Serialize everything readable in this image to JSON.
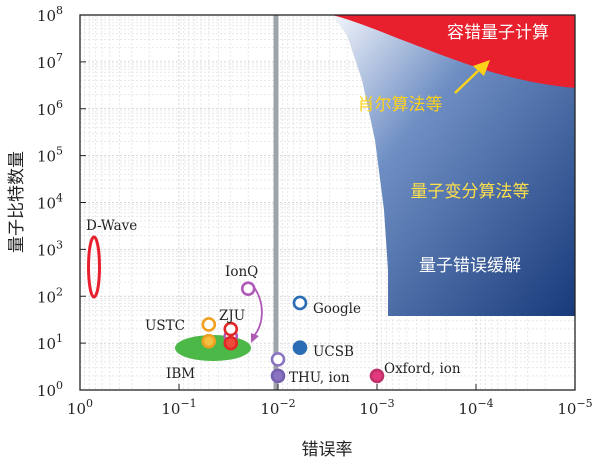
{
  "chart_data": {
    "type": "scatter",
    "title": "",
    "xlabel": "错误率",
    "ylabel": "量子比特数量",
    "xscale": "log",
    "yscale": "log",
    "x_direction": "decreasing",
    "xlim": [
      1,
      1e-05
    ],
    "ylim": [
      1,
      100000000.0
    ],
    "grid": true,
    "x_ticks": [
      {
        "value": 1,
        "base": "10",
        "exp": "0"
      },
      {
        "value": 0.1,
        "base": "10",
        "exp": "−1"
      },
      {
        "value": 0.01,
        "base": "10",
        "exp": "−2"
      },
      {
        "value": 0.001,
        "base": "10",
        "exp": "−3"
      },
      {
        "value": 0.0001,
        "base": "10",
        "exp": "−4"
      },
      {
        "value": 1e-05,
        "base": "10",
        "exp": "−5"
      }
    ],
    "y_ticks": [
      {
        "value": 1,
        "base": "10",
        "exp": "0"
      },
      {
        "value": 10,
        "base": "10",
        "exp": "1"
      },
      {
        "value": 100,
        "base": "10",
        "exp": "2"
      },
      {
        "value": 1000,
        "base": "10",
        "exp": "3"
      },
      {
        "value": 10000,
        "base": "10",
        "exp": "4"
      },
      {
        "value": 100000,
        "base": "10",
        "exp": "5"
      },
      {
        "value": 1000000,
        "base": "10",
        "exp": "6"
      },
      {
        "value": 10000000,
        "base": "10",
        "exp": "7"
      },
      {
        "value": 100000000,
        "base": "10",
        "exp": "8"
      }
    ],
    "threshold_line": {
      "x": 0.01,
      "color": "#9ea3a8"
    },
    "regions": [
      {
        "name": "容错量子计算",
        "color": "#e8202e",
        "text_color": "#ffffff"
      },
      {
        "name": "量子变分算法等",
        "color": "#2f5c9e",
        "text_color": "#ffe04a"
      },
      {
        "name": "量子错误缓解",
        "color": "#1e3f80",
        "text_color": "#ffffff"
      }
    ],
    "shor_label": {
      "text": "肖尔算法等",
      "color": "#ffd21a"
    },
    "dwave": {
      "label": "D-Wave",
      "x": 0.7,
      "y_low": 100,
      "y_high": 1000,
      "color": "#e8202e"
    },
    "ibm_cluster": {
      "label": "IBM",
      "x_range": [
        0.08,
        0.015
      ],
      "y": 9,
      "color": "#4cb848"
    },
    "points": [
      {
        "label": "Google",
        "x": 0.006,
        "y": 72,
        "color": "#2a6db5",
        "fill": "#ffffff"
      },
      {
        "label": "UCSB",
        "x": 0.006,
        "y": 8,
        "color": "#2a6db5",
        "fill": "#2a6db5"
      },
      {
        "label": "THU, ion",
        "x": 0.01,
        "y": 4.5,
        "color": "#8a74c2",
        "fill": "#ffffff"
      },
      {
        "label": "",
        "x": 0.01,
        "y": 2,
        "color": "#7560b0",
        "fill": "#8a74c2"
      },
      {
        "label": "Oxford, ion",
        "x": 0.001,
        "y": 2,
        "color": "#c0306a",
        "fill": "#e23a7c"
      },
      {
        "label": "IonQ",
        "x": 0.03,
        "y": 14,
        "color": "#b05ab8",
        "fill": "#ffffff"
      },
      {
        "label": "",
        "x": 0.02,
        "y": 145,
        "color": "#b05ab8",
        "fill": "#ffffff"
      },
      {
        "label": "USTC",
        "x": 0.05,
        "y": 25,
        "color": "#f0a020",
        "fill": "#ffffff"
      },
      {
        "label": "",
        "x": 0.05,
        "y": 11,
        "color": "#f0a020",
        "fill": "#f5c040"
      },
      {
        "label": "ZJU",
        "x": 0.03,
        "y": 20,
        "color": "#e02828",
        "fill": "#ffffff"
      },
      {
        "label": "",
        "x": 0.03,
        "y": 10,
        "color": "#e02828",
        "fill": "#f04a3a"
      }
    ]
  }
}
